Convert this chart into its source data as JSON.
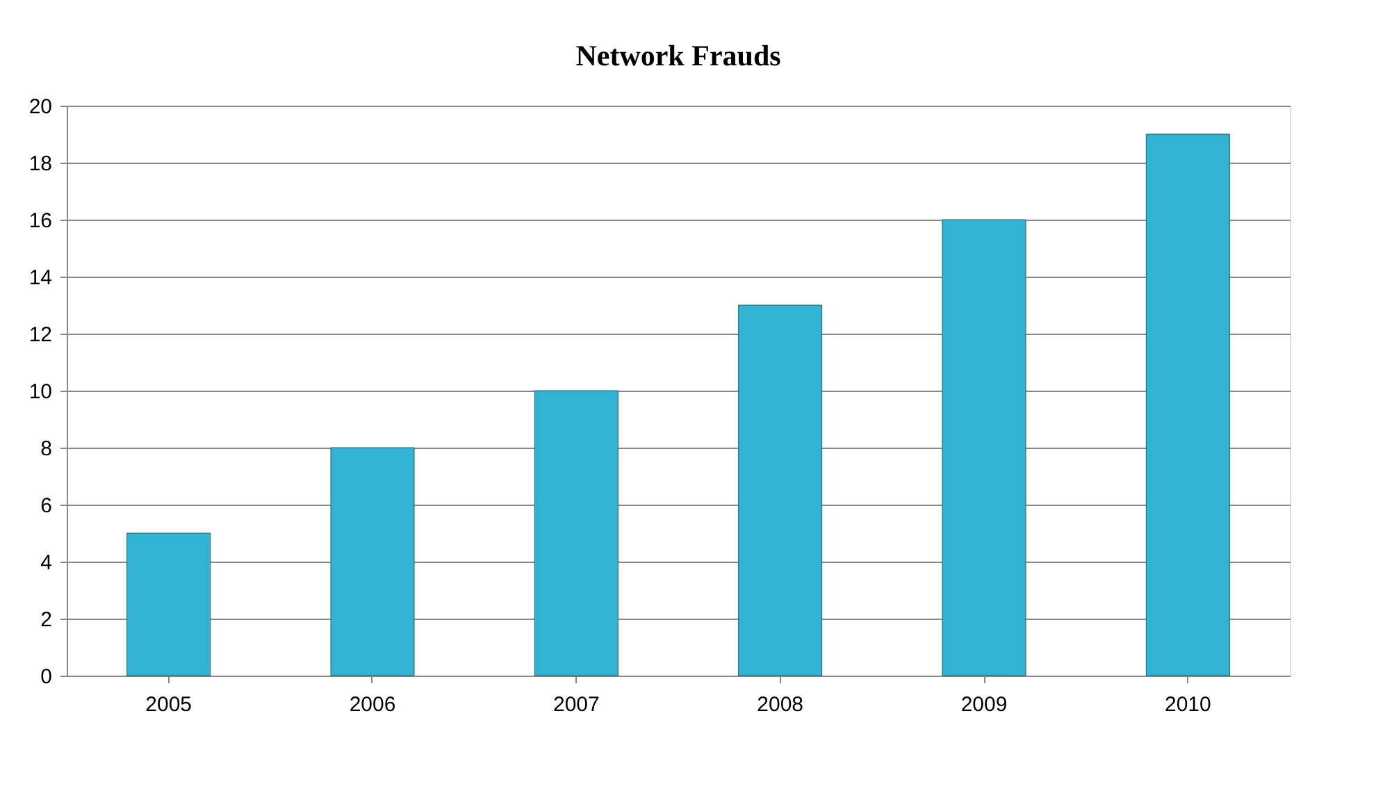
{
  "chart_data": {
    "type": "bar",
    "title": "Network Frauds",
    "categories": [
      "2005",
      "2006",
      "2007",
      "2008",
      "2009",
      "2010"
    ],
    "values": [
      5,
      8,
      10,
      13,
      16,
      19
    ],
    "color": "#31b3d4",
    "ylim": [
      0,
      20
    ],
    "yticks": [
      0,
      2,
      4,
      6,
      8,
      10,
      12,
      14,
      16,
      18,
      20
    ],
    "grid": "y"
  }
}
